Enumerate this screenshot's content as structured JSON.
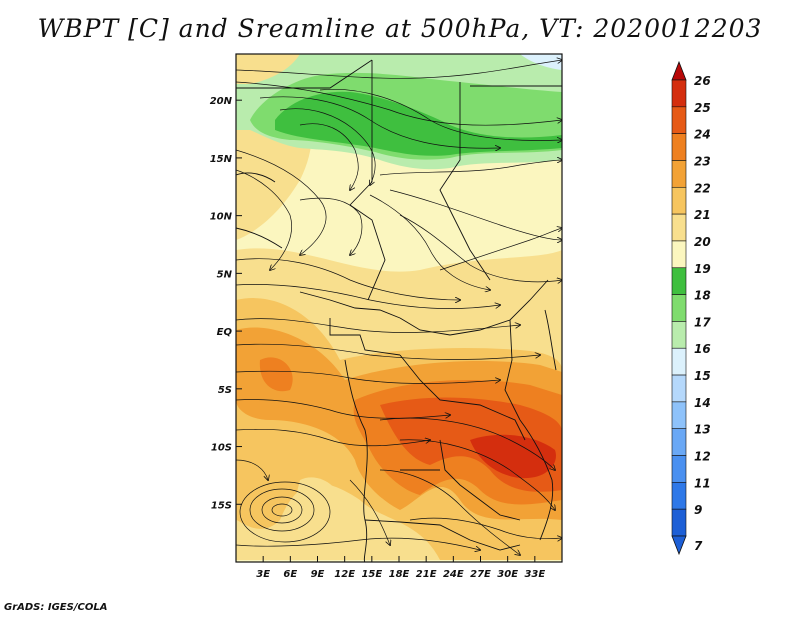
{
  "title": "WBPT [C] and Sreamline at 500hPa, VT: 2020012203",
  "footer": "GrADS: IGES/COLA",
  "map": {
    "lon_range": [
      0,
      36
    ],
    "lat_range": [
      -20,
      24
    ],
    "lon_ticks": [
      {
        "value": 3,
        "label": "3E"
      },
      {
        "value": 6,
        "label": "6E"
      },
      {
        "value": 9,
        "label": "9E"
      },
      {
        "value": 12,
        "label": "12E"
      },
      {
        "value": 15,
        "label": "15E"
      },
      {
        "value": 18,
        "label": "18E"
      },
      {
        "value": 21,
        "label": "21E"
      },
      {
        "value": 24,
        "label": "24E"
      },
      {
        "value": 27,
        "label": "27E"
      },
      {
        "value": 30,
        "label": "30E"
      },
      {
        "value": 33,
        "label": "33E"
      }
    ],
    "lat_ticks": [
      {
        "value": 20,
        "label": "20N"
      },
      {
        "value": 15,
        "label": "15N"
      },
      {
        "value": 10,
        "label": "10N"
      },
      {
        "value": 5,
        "label": "5N"
      },
      {
        "value": 0,
        "label": "EQ"
      },
      {
        "value": -5,
        "label": "5S"
      },
      {
        "value": -10,
        "label": "10S"
      },
      {
        "value": -15,
        "label": "15S"
      }
    ]
  },
  "colorbar": {
    "labels": [
      "7",
      "9",
      "11",
      "12",
      "13",
      "14",
      "15",
      "16",
      "17",
      "18",
      "19",
      "20",
      "21",
      "22",
      "23",
      "24",
      "25",
      "26"
    ],
    "colors": [
      "#1d5fd6",
      "#2e78e8",
      "#4a90f0",
      "#6aa8f5",
      "#8ec2fa",
      "#b5d8fb",
      "#dcf1fc",
      "#b9ecad",
      "#7fdc6e",
      "#3fbf3f",
      "#fbf6bf",
      "#f8df8e",
      "#f6c55f",
      "#f2a236",
      "#ee8020",
      "#e65a16",
      "#d42e0e",
      "#b80808"
    ]
  }
}
